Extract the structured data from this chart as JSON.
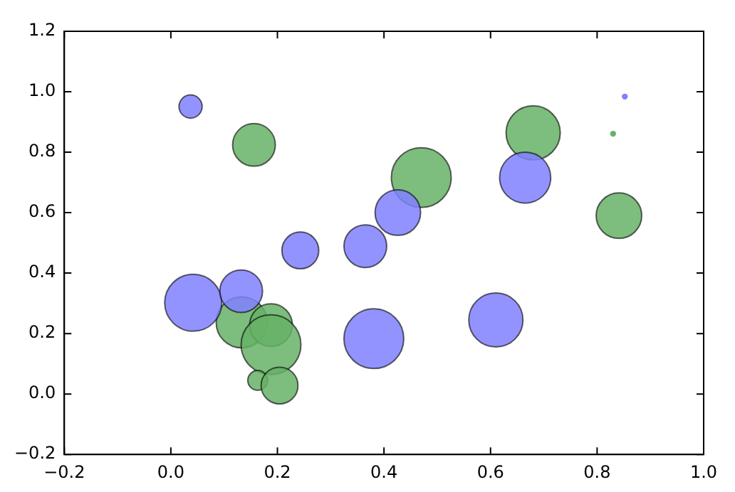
{
  "chart_data": {
    "type": "bubble",
    "grid": false,
    "legend": false,
    "xlim": [
      -0.2,
      1.0
    ],
    "ylim": [
      -0.2,
      1.2
    ],
    "xticks": [
      {
        "value": -0.2,
        "label": "−0.2"
      },
      {
        "value": 0,
        "label": "0.0"
      },
      {
        "value": 0.2,
        "label": "0.2"
      },
      {
        "value": 0.4,
        "label": "0.4"
      },
      {
        "value": 0.6,
        "label": "0.6"
      },
      {
        "value": 0.8,
        "label": "0.8"
      },
      {
        "value": 1,
        "label": "1.0"
      }
    ],
    "yticks": [
      {
        "value": -0.2,
        "label": "−0.2"
      },
      {
        "value": 0,
        "label": "0.0"
      },
      {
        "value": 0.2,
        "label": "0.2"
      },
      {
        "value": 0.4,
        "label": "0.4"
      },
      {
        "value": 0.6,
        "label": "0.6"
      },
      {
        "value": 0.8,
        "label": "0.8"
      },
      {
        "value": 1,
        "label": "1.0"
      },
      {
        "value": 1.2,
        "label": "1.2"
      }
    ],
    "series": [
      {
        "color": "#8080ff",
        "x": [
          0.037,
          0.042,
          0.132,
          0.243,
          0.365,
          0.381,
          0.426,
          0.665,
          0.61,
          0.852
        ],
        "values": [
          0.951,
          0.302,
          0.34,
          0.475,
          0.489,
          0.183,
          0.6,
          0.716,
          0.245,
          0.984
        ],
        "sizes": [
          0.15,
          0.91,
          0.51,
          0.38,
          0.51,
          1,
          0.58,
          0.73,
          0.82,
          0.01
        ]
      },
      {
        "color": "#66b266",
        "x": [
          0.156,
          0.133,
          0.188,
          0.188,
          0.163,
          0.204,
          0.47,
          0.68,
          0.841,
          0.83
        ],
        "values": [
          0.824,
          0.237,
          0.228,
          0.163,
          0.045,
          0.028,
          0.716,
          0.864,
          0.59,
          0.861
        ],
        "sizes": [
          0.51,
          0.73,
          0.51,
          1,
          0.11,
          0.38,
          1,
          0.82,
          0.58,
          0.01
        ]
      }
    ]
  }
}
